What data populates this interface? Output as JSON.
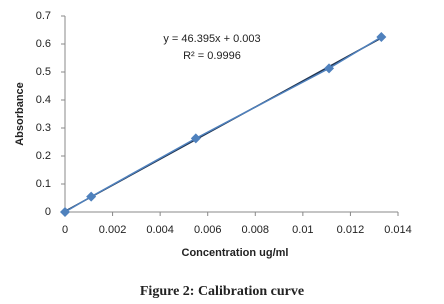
{
  "chart_data": {
    "type": "scatter",
    "x_label": "Concentration ug/ml",
    "y_label": "Absorbance",
    "annotations": [
      "y = 46.395x + 0.003",
      "R² = 0.9996"
    ],
    "series": [
      {
        "name": "Absorbance",
        "color": "#4f81bd",
        "x": [
          0,
          0.0011,
          0.0055,
          0.0111,
          0.0133
        ],
        "values": [
          0,
          0.055,
          0.263,
          0.513,
          0.625
        ]
      }
    ],
    "trendline_color": "#1f3350",
    "xlim": [
      0,
      0.014
    ],
    "xticks": [
      0,
      0.002,
      0.004,
      0.006,
      0.008,
      0.01,
      0.012,
      0.014
    ],
    "ylim": [
      0,
      0.7
    ],
    "yticks": [
      0,
      0.1,
      0.2,
      0.3,
      0.4,
      0.5,
      0.6,
      0.7
    ],
    "grid": false
  },
  "caption": "Figure 2: Calibration curve"
}
